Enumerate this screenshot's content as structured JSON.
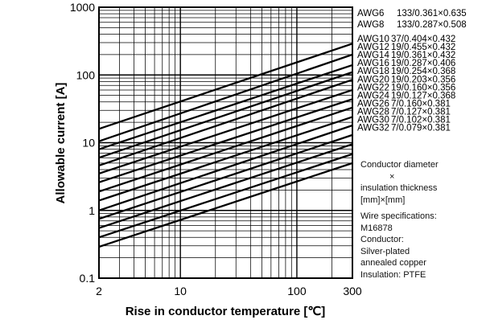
{
  "chart_data": {
    "type": "line",
    "xlabel": "Rise in conductor temperature [℃]",
    "ylabel": "Allowable current [A]",
    "xscale": "log",
    "yscale": "log",
    "xlim": [
      2,
      300
    ],
    "ylim": [
      0.1,
      1000
    ],
    "x_ticks": [
      "2",
      "10",
      "100",
      "300"
    ],
    "y_ticks": [
      "0.1",
      "1",
      "10",
      "100",
      "1000"
    ],
    "grid": true,
    "legend_placement": "right",
    "series": [
      {
        "name": "AWG6",
        "spec": "133/0.361×0.635",
        "points": [
          [
            2,
            16.0
          ],
          [
            300,
            290
          ]
        ]
      },
      {
        "name": "AWG8",
        "spec": "133/0.287×0.508",
        "points": [
          [
            2,
            10.5
          ],
          [
            300,
            200
          ]
        ]
      },
      {
        "name": "AWG10",
        "spec": "37/0.404×0.432",
        "points": [
          [
            2,
            8.0
          ],
          [
            300,
            140
          ]
        ]
      },
      {
        "name": "AWG12",
        "spec": "19/0.455×0.432",
        "points": [
          [
            2,
            6.0
          ],
          [
            300,
            110
          ]
        ]
      },
      {
        "name": "AWG14",
        "spec": "19/0.361×0.432",
        "points": [
          [
            2,
            4.6
          ],
          [
            300,
            85
          ]
        ]
      },
      {
        "name": "AWG16",
        "spec": "19/0.287×0.406",
        "points": [
          [
            2,
            3.5
          ],
          [
            300,
            60
          ]
        ]
      },
      {
        "name": "AWG18",
        "spec": "19/0.254×0.368",
        "points": [
          [
            2,
            2.6
          ],
          [
            300,
            44
          ]
        ]
      },
      {
        "name": "AWG20",
        "spec": "19/0.203×0.356",
        "points": [
          [
            2,
            1.9
          ],
          [
            300,
            33
          ]
        ]
      },
      {
        "name": "AWG22",
        "spec": "19/0.160×0.356",
        "points": [
          [
            2,
            1.4
          ],
          [
            300,
            24
          ]
        ]
      },
      {
        "name": "AWG24",
        "spec": "19/0.127×0.368",
        "points": [
          [
            2,
            1.0
          ],
          [
            300,
            18
          ]
        ]
      },
      {
        "name": "AWG26",
        "spec": "7/0.160×0.381",
        "points": [
          [
            2,
            0.75
          ],
          [
            300,
            13
          ]
        ]
      },
      {
        "name": "AWG28",
        "spec": "7/0.127×0.381",
        "points": [
          [
            2,
            0.55
          ],
          [
            300,
            9.5
          ]
        ]
      },
      {
        "name": "AWG30",
        "spec": "7/0.102×0.381",
        "points": [
          [
            2,
            0.4
          ],
          [
            300,
            6.8
          ]
        ]
      },
      {
        "name": "AWG32",
        "spec": "7/0.079×0.381",
        "points": [
          [
            2,
            0.29
          ],
          [
            300,
            5.0
          ]
        ]
      }
    ]
  },
  "notes": {
    "diameter_line1": "Conductor diameter",
    "diameter_line2": "×",
    "diameter_line3": "insulation thickness",
    "diameter_line4": "[mm]×[mm]",
    "spec_line1": "Wire specifications:",
    "spec_line2": "M16878",
    "spec_line3": "Conductor:",
    "spec_line4": "Silver-plated",
    "spec_line5": "annealed copper",
    "spec_line6": "Insulation: PTFE"
  }
}
